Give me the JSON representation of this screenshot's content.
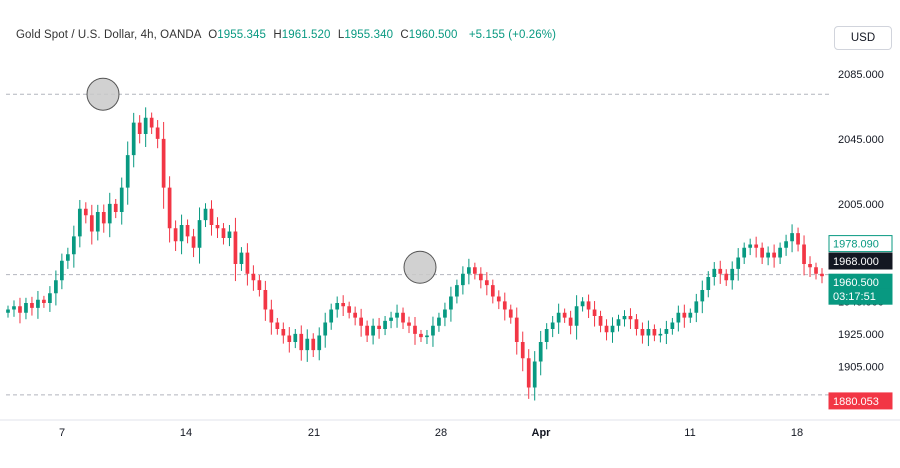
{
  "header": {
    "symbol": "Gold Spot / U.S. Dollar, 4h, OANDA",
    "open_label": "O",
    "open": "1955.345",
    "high_label": "H",
    "high": "1961.520",
    "low_label": "L",
    "low": "1955.340",
    "close_label": "C",
    "close": "1960.500",
    "change": "+5.155 (+0.26%)"
  },
  "currency_button": "USD",
  "colors": {
    "up": "#089981",
    "down": "#f23645",
    "price_badge": "#131722",
    "low_badge": "#f23645",
    "marker": "#c9c9c9"
  },
  "chart_data": {
    "type": "candlestick",
    "xlabel": "",
    "ylabel": "",
    "x_ticks": [
      "7",
      "14",
      "21",
      "28",
      "Apr",
      "11",
      "18"
    ],
    "y_ticks": [
      "2085.000",
      "2045.000",
      "2005.000",
      "1945.000",
      "1925.000",
      "1905.000"
    ],
    "ylim": [
      1872,
      2112
    ],
    "horizontal_levels": [
      2072.5,
      1961.5,
      1887.5
    ],
    "markers": [
      {
        "type": "circle",
        "date": "Mar 9",
        "price": 2072.5
      },
      {
        "type": "circle",
        "date": "Mar 26",
        "price": 1966
      }
    ],
    "price_labels": [
      {
        "text": "1978.090",
        "value": 1978.09,
        "style": "outline"
      },
      {
        "text": "1968.000",
        "value": 1968.0,
        "style": "dark"
      },
      {
        "text": "1960.500",
        "value": 1960.5,
        "style": "green"
      },
      {
        "text": "03:17:51",
        "value": null,
        "style": "green"
      },
      {
        "text": "1880.053",
        "value": 1880.053,
        "style": "red"
      }
    ],
    "closes": [
      1940,
      1942,
      1938,
      1944,
      1941,
      1946,
      1944,
      1950,
      1958,
      1970,
      1974,
      1985,
      2002,
      1998,
      1988,
      2000,
      1993,
      2005,
      2000,
      2015,
      2035,
      2055,
      2048,
      2058,
      2052,
      2045,
      2015,
      1990,
      1982,
      1992,
      1985,
      1978,
      1995,
      2002,
      1992,
      1990,
      1984,
      1988,
      1968,
      1975,
      1962,
      1958,
      1952,
      1940,
      1932,
      1928,
      1924,
      1920,
      1925,
      1915,
      1922,
      1915,
      1924,
      1932,
      1940,
      1944,
      1942,
      1938,
      1935,
      1930,
      1924,
      1930,
      1928,
      1933,
      1935,
      1938,
      1932,
      1930,
      1925,
      1923,
      1924,
      1930,
      1935,
      1940,
      1948,
      1955,
      1962,
      1966,
      1962,
      1958,
      1955,
      1948,
      1945,
      1940,
      1935,
      1920,
      1910,
      1892,
      1908,
      1920,
      1928,
      1932,
      1938,
      1935,
      1930,
      1942,
      1945,
      1940,
      1936,
      1930,
      1926,
      1930,
      1934,
      1936,
      1934,
      1928,
      1924,
      1928,
      1924,
      1925,
      1928,
      1932,
      1938,
      1935,
      1938,
      1945,
      1952,
      1960,
      1965,
      1962,
      1958,
      1965,
      1972,
      1978,
      1980,
      1978,
      1972,
      1975,
      1972,
      1978,
      1982,
      1987,
      1980,
      1968,
      1966,
      1962,
      1960.5
    ]
  }
}
